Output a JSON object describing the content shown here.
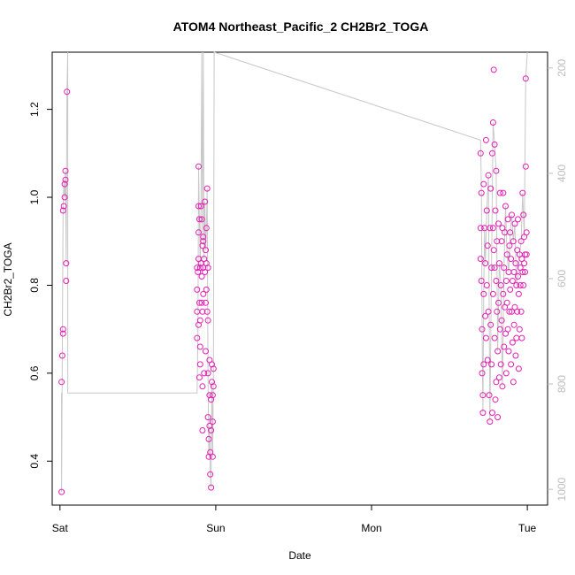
{
  "chart_data": {
    "type": "scatter",
    "title": "ATOM4 Northeast_Pacific_2 CH2Br2_TOGA",
    "xlabel": "Date",
    "ylabel": "CH2Br2_TOGA",
    "x_ticks": [
      {
        "label": "Sat",
        "value": 0
      },
      {
        "label": "Sun",
        "value": 1
      },
      {
        "label": "Mon",
        "value": 2
      },
      {
        "label": "Tue",
        "value": 3
      }
    ],
    "xlim": [
      -0.05,
      3.13
    ],
    "y_ticks": [
      0.4,
      0.6,
      0.8,
      1.0,
      1.2
    ],
    "ylim": [
      0.3,
      1.33
    ],
    "y2_label": "",
    "y2_ticks": [
      200,
      400,
      600,
      800,
      1000
    ],
    "y2lim": [
      1030,
      170
    ],
    "y2_reversed": true,
    "grid": false,
    "colors": {
      "points": "#e61eb4",
      "line": "#c8c8c8",
      "right_axis": "#bdbdbd"
    },
    "series": [
      {
        "values": [
          [
            0.01,
            0.33
          ],
          [
            0.01,
            0.58
          ],
          [
            0.015,
            0.64
          ],
          [
            0.02,
            0.69
          ],
          [
            0.02,
            0.7
          ],
          [
            0.02,
            0.97
          ],
          [
            0.025,
            0.98
          ],
          [
            0.03,
            1.0
          ],
          [
            0.03,
            1.03
          ],
          [
            0.035,
            1.04
          ],
          [
            0.035,
            1.06
          ],
          [
            0.04,
            0.81
          ],
          [
            0.04,
            0.85
          ],
          [
            0.045,
            1.24
          ],
          [
            0.88,
            0.68
          ],
          [
            0.88,
            0.74
          ],
          [
            0.88,
            0.79
          ],
          [
            0.88,
            0.84
          ],
          [
            0.885,
            0.83
          ],
          [
            0.89,
            1.07
          ],
          [
            0.89,
            0.98
          ],
          [
            0.89,
            0.92
          ],
          [
            0.89,
            0.86
          ],
          [
            0.89,
            0.71
          ],
          [
            0.895,
            0.76
          ],
          [
            0.895,
            0.95
          ],
          [
            0.895,
            0.59
          ],
          [
            0.9,
            0.62
          ],
          [
            0.9,
            0.66
          ],
          [
            0.9,
            0.72
          ],
          [
            0.9,
            0.84
          ],
          [
            0.905,
            0.85
          ],
          [
            0.905,
            0.98
          ],
          [
            0.91,
            0.95
          ],
          [
            0.91,
            0.82
          ],
          [
            0.91,
            0.76
          ],
          [
            0.915,
            0.89
          ],
          [
            0.915,
            0.74
          ],
          [
            0.915,
            0.57
          ],
          [
            0.915,
            0.47
          ],
          [
            0.92,
            0.78
          ],
          [
            0.92,
            0.84
          ],
          [
            0.92,
            0.9
          ],
          [
            0.92,
            0.91
          ],
          [
            0.925,
            0.6
          ],
          [
            0.925,
            0.86
          ],
          [
            0.93,
            0.99
          ],
          [
            0.93,
            0.83
          ],
          [
            0.935,
            0.76
          ],
          [
            0.935,
            0.88
          ],
          [
            0.935,
            0.65
          ],
          [
            0.94,
            0.93
          ],
          [
            0.94,
            0.85
          ],
          [
            0.94,
            0.79
          ],
          [
            0.945,
            0.74
          ],
          [
            0.945,
            1.02
          ],
          [
            0.95,
            0.84
          ],
          [
            0.95,
            0.72
          ],
          [
            0.95,
            0.6
          ],
          [
            0.95,
            0.5
          ],
          [
            0.955,
            0.41
          ],
          [
            0.955,
            0.45
          ],
          [
            0.96,
            0.48
          ],
          [
            0.96,
            0.55
          ],
          [
            0.96,
            0.63
          ],
          [
            0.965,
            0.37
          ],
          [
            0.965,
            0.42
          ],
          [
            0.97,
            0.34
          ],
          [
            0.97,
            0.47
          ],
          [
            0.97,
            0.54
          ],
          [
            0.975,
            0.58
          ],
          [
            0.975,
            0.62
          ],
          [
            0.98,
            0.41
          ],
          [
            0.98,
            0.49
          ],
          [
            0.98,
            0.55
          ],
          [
            0.985,
            0.61
          ],
          [
            0.985,
            0.57
          ],
          [
            2.7,
            1.1
          ],
          [
            2.7,
            0.93
          ],
          [
            2.7,
            0.86
          ],
          [
            2.705,
            1.01
          ],
          [
            2.705,
            0.81
          ],
          [
            2.71,
            0.7
          ],
          [
            2.71,
            0.6
          ],
          [
            2.715,
            0.55
          ],
          [
            2.715,
            0.51
          ],
          [
            2.72,
            0.62
          ],
          [
            2.72,
            0.78
          ],
          [
            2.72,
            1.03
          ],
          [
            2.725,
            0.93
          ],
          [
            2.73,
            0.85
          ],
          [
            2.73,
            0.73
          ],
          [
            2.735,
            1.13
          ],
          [
            2.735,
            0.68
          ],
          [
            2.74,
            0.97
          ],
          [
            2.74,
            0.8
          ],
          [
            2.745,
            0.89
          ],
          [
            2.745,
            0.63
          ],
          [
            2.75,
            1.05
          ],
          [
            2.75,
            0.74
          ],
          [
            2.755,
            0.55
          ],
          [
            2.76,
            0.49
          ],
          [
            2.76,
            0.93
          ],
          [
            2.765,
            1.02
          ],
          [
            2.765,
            0.71
          ],
          [
            2.77,
            0.84
          ],
          [
            2.77,
            0.62
          ],
          [
            2.775,
            1.1
          ],
          [
            2.775,
            0.51
          ],
          [
            2.78,
            1.17
          ],
          [
            2.78,
            0.93
          ],
          [
            2.78,
            0.78
          ],
          [
            2.785,
            1.29
          ],
          [
            2.785,
            0.88
          ],
          [
            2.79,
            1.12
          ],
          [
            2.79,
            0.84
          ],
          [
            2.79,
            0.68
          ],
          [
            2.795,
            0.97
          ],
          [
            2.795,
            0.54
          ],
          [
            2.8,
            1.06
          ],
          [
            2.8,
            0.81
          ],
          [
            2.8,
            0.58
          ],
          [
            2.805,
            0.74
          ],
          [
            2.805,
            0.9
          ],
          [
            2.81,
            0.65
          ],
          [
            2.81,
            0.5
          ],
          [
            2.815,
            0.94
          ],
          [
            2.815,
            0.76
          ],
          [
            2.82,
            0.85
          ],
          [
            2.82,
            0.59
          ],
          [
            2.825,
            1.01
          ],
          [
            2.825,
            0.7
          ],
          [
            2.83,
            0.8
          ],
          [
            2.83,
            0.62
          ],
          [
            2.835,
            0.9
          ],
          [
            2.835,
            0.72
          ],
          [
            2.84,
            0.57
          ],
          [
            2.84,
            0.93
          ],
          [
            2.845,
            1.01
          ],
          [
            2.845,
            0.78
          ],
          [
            2.85,
            0.84
          ],
          [
            2.85,
            0.66
          ],
          [
            2.855,
            0.92
          ],
          [
            2.855,
            0.75
          ],
          [
            2.86,
            0.98
          ],
          [
            2.86,
            0.69
          ],
          [
            2.865,
            0.81
          ],
          [
            2.865,
            0.6
          ],
          [
            2.87,
            0.87
          ],
          [
            2.87,
            0.76
          ],
          [
            2.875,
            0.95
          ],
          [
            2.875,
            0.7
          ],
          [
            2.88,
            0.83
          ],
          [
            2.88,
            0.65
          ],
          [
            2.885,
            0.89
          ],
          [
            2.885,
            0.74
          ],
          [
            2.89,
            0.92
          ],
          [
            2.89,
            0.79
          ],
          [
            2.895,
            0.86
          ],
          [
            2.895,
            0.62
          ],
          [
            2.9,
            0.96
          ],
          [
            2.9,
            0.74
          ],
          [
            2.905,
            0.81
          ],
          [
            2.905,
            0.67
          ],
          [
            2.91,
            0.9
          ],
          [
            2.91,
            0.58
          ],
          [
            2.915,
            0.83
          ],
          [
            2.915,
            0.71
          ],
          [
            2.92,
            0.94
          ],
          [
            2.92,
            0.75
          ],
          [
            2.925,
            0.85
          ],
          [
            2.925,
            0.64
          ],
          [
            2.93,
            0.8
          ],
          [
            2.93,
            0.68
          ],
          [
            2.935,
            0.88
          ],
          [
            2.935,
            0.74
          ],
          [
            2.94,
            0.82
          ],
          [
            2.94,
            0.95
          ],
          [
            2.945,
            0.78
          ],
          [
            2.945,
            0.61
          ],
          [
            2.95,
            0.87
          ],
          [
            2.95,
            0.7
          ],
          [
            2.955,
            0.84
          ],
          [
            2.955,
            0.8
          ],
          [
            2.96,
            0.9
          ],
          [
            2.96,
            0.74
          ],
          [
            2.965,
            0.86
          ],
          [
            2.965,
            0.68
          ],
          [
            2.97,
            1.01
          ],
          [
            2.97,
            0.83
          ],
          [
            2.975,
            0.96
          ],
          [
            2.975,
            0.8
          ],
          [
            2.98,
            0.91
          ],
          [
            2.98,
            0.85
          ],
          [
            2.985,
            0.87
          ],
          [
            2.985,
            0.83
          ],
          [
            2.99,
            1.27
          ],
          [
            2.99,
            1.07
          ],
          [
            2.995,
            0.92
          ],
          [
            2.995,
            0.87
          ]
        ]
      }
    ],
    "line": {
      "x": [
        0.01,
        0.01,
        0.015,
        0.02,
        0.025,
        0.03,
        0.035,
        0.04,
        0.045,
        0.05,
        0.05,
        0.88,
        0.885,
        0.89,
        0.895,
        0.9,
        0.905,
        0.91,
        0.915,
        0.92,
        0.925,
        0.93,
        0.935,
        0.94,
        0.945,
        0.95,
        0.955,
        0.96,
        0.965,
        0.97,
        0.975,
        0.98,
        0.985,
        0.99,
        2.7,
        2.705,
        2.71,
        2.715,
        2.72,
        2.725,
        2.73,
        2.74,
        2.75,
        2.76,
        2.77,
        2.78,
        2.79,
        2.8,
        2.81,
        2.82,
        2.83,
        2.84,
        2.85,
        2.86,
        2.87,
        2.88,
        2.89,
        2.9,
        2.91,
        2.92,
        2.93,
        2.94,
        2.95,
        2.96,
        2.97,
        2.98,
        2.99,
        3.0
      ],
      "y": [
        0.555,
        0.33,
        0.64,
        0.97,
        1.04,
        1.0,
        1.06,
        0.85,
        1.24,
        1.33,
        0.555,
        0.555,
        0.68,
        1.07,
        0.95,
        0.84,
        0.98,
        1.33,
        0.9,
        1.33,
        0.86,
        0.99,
        0.88,
        0.93,
        1.02,
        0.6,
        0.41,
        0.48,
        0.37,
        0.34,
        0.58,
        0.41,
        0.61,
        1.33,
        1.13,
        1.01,
        0.7,
        0.51,
        0.78,
        0.93,
        0.85,
        0.97,
        1.05,
        0.49,
        0.84,
        1.17,
        1.12,
        1.06,
        0.65,
        0.85,
        0.8,
        0.57,
        0.84,
        0.98,
        0.87,
        0.83,
        0.92,
        0.96,
        0.9,
        0.94,
        0.8,
        0.82,
        0.87,
        0.9,
        1.01,
        0.91,
        1.27,
        1.33
      ]
    }
  }
}
